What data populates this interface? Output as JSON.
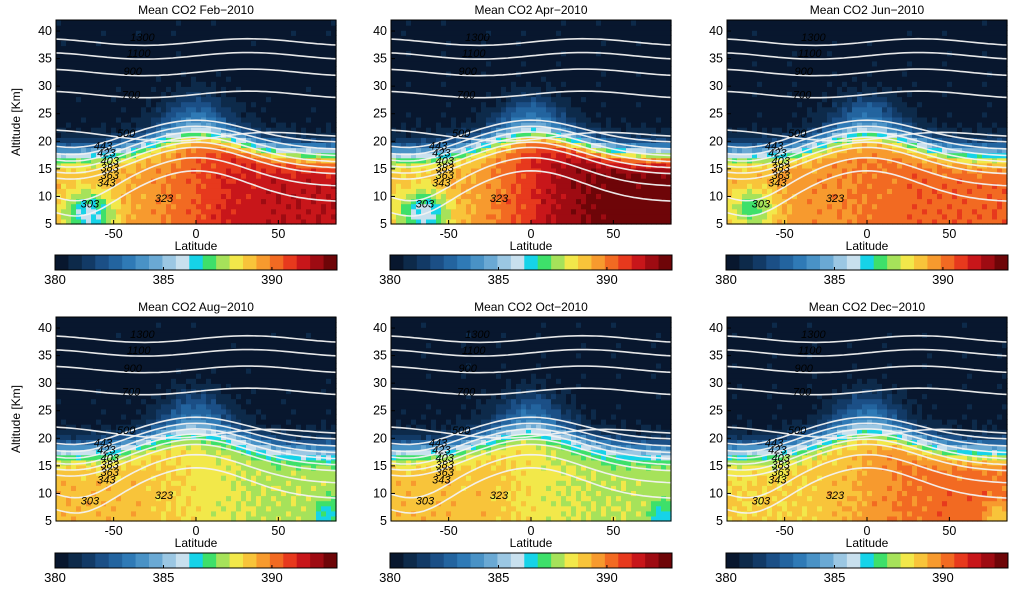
{
  "chart_data": [
    {
      "type": "heatmap",
      "title": "Mean CO2  Feb−2010",
      "xlabel": "Latitude",
      "ylabel": "Altitude [Km]",
      "xlim": [
        -85,
        85
      ],
      "ylim": [
        5,
        42
      ],
      "xticks": [
        "-50",
        "0",
        "50"
      ],
      "yticks": [
        "5",
        "10",
        "15",
        "20",
        "25",
        "30",
        "35",
        "40"
      ],
      "colorbar": {
        "range": [
          380,
          393
        ],
        "ticks": [
          "380",
          "385",
          "390"
        ]
      },
      "contour_labels": [
        "1300",
        "1100",
        "900",
        "700",
        "500",
        "443",
        "423",
        "403",
        "383",
        "363",
        "343",
        "323",
        "303"
      ],
      "core_value": 390.5
    },
    {
      "type": "heatmap",
      "title": "Mean CO2  Apr−2010",
      "xlabel": "Latitude",
      "ylabel": "",
      "xlim": [
        -85,
        85
      ],
      "ylim": [
        5,
        42
      ],
      "xticks": [
        "-50",
        "0",
        "50"
      ],
      "yticks": [
        "5",
        "10",
        "15",
        "20",
        "25",
        "30",
        "35",
        "40"
      ],
      "colorbar": {
        "range": [
          380,
          393
        ],
        "ticks": [
          "380",
          "385",
          "390"
        ]
      },
      "contour_labels": [
        "1300",
        "1100",
        "900",
        "700",
        "500",
        "443",
        "423",
        "403",
        "383",
        "363",
        "343",
        "323",
        "303"
      ],
      "core_value": 391.0
    },
    {
      "type": "heatmap",
      "title": "Mean CO2  Jun−2010",
      "xlabel": "Latitude",
      "ylabel": "",
      "xlim": [
        -85,
        85
      ],
      "ylim": [
        5,
        42
      ],
      "xticks": [
        "-50",
        "0",
        "50"
      ],
      "yticks": [
        "5",
        "10",
        "15",
        "20",
        "25",
        "30",
        "35",
        "40"
      ],
      "colorbar": {
        "range": [
          380,
          393
        ],
        "ticks": [
          "380",
          "385",
          "390"
        ]
      },
      "contour_labels": [
        "1300",
        "1100",
        "900",
        "700",
        "500",
        "443",
        "423",
        "403",
        "383",
        "363",
        "343",
        "323",
        "303"
      ],
      "core_value": 390.0
    },
    {
      "type": "heatmap",
      "title": "Mean CO2  Aug−2010",
      "xlabel": "Latitude",
      "ylabel": "Altitude [Km]",
      "xlim": [
        -85,
        85
      ],
      "ylim": [
        5,
        42
      ],
      "xticks": [
        "-50",
        "0",
        "50"
      ],
      "yticks": [
        "5",
        "10",
        "15",
        "20",
        "25",
        "30",
        "35",
        "40"
      ],
      "colorbar": {
        "range": [
          380,
          393
        ],
        "ticks": [
          "380",
          "385",
          "390"
        ]
      },
      "contour_labels": [
        "1300",
        "1100",
        "900",
        "700",
        "500",
        "443",
        "423",
        "403",
        "383",
        "363",
        "343",
        "323",
        "303"
      ],
      "core_value": 388.5
    },
    {
      "type": "heatmap",
      "title": "Mean CO2  Oct−2010",
      "xlabel": "Latitude",
      "ylabel": "",
      "xlim": [
        -85,
        85
      ],
      "ylim": [
        5,
        42
      ],
      "xticks": [
        "-50",
        "0",
        "50"
      ],
      "yticks": [
        "5",
        "10",
        "15",
        "20",
        "25",
        "30",
        "35",
        "40"
      ],
      "colorbar": {
        "range": [
          380,
          393
        ],
        "ticks": [
          "380",
          "385",
          "390"
        ]
      },
      "contour_labels": [
        "1300",
        "1100",
        "900",
        "700",
        "500",
        "443",
        "423",
        "403",
        "383",
        "363",
        "343",
        "323",
        "303"
      ],
      "core_value": 388.5
    },
    {
      "type": "heatmap",
      "title": "Mean CO2  Dec−2010",
      "xlabel": "Latitude",
      "ylabel": "",
      "xlim": [
        -85,
        85
      ],
      "ylim": [
        5,
        42
      ],
      "xticks": [
        "-50",
        "0",
        "50"
      ],
      "yticks": [
        "5",
        "10",
        "15",
        "20",
        "25",
        "30",
        "35",
        "40"
      ],
      "colorbar": {
        "range": [
          380,
          393
        ],
        "ticks": [
          "380",
          "385",
          "390"
        ]
      },
      "contour_labels": [
        "1300",
        "1100",
        "900",
        "700",
        "500",
        "443",
        "423",
        "403",
        "383",
        "363",
        "343",
        "323",
        "303"
      ],
      "core_value": 389.5
    }
  ],
  "colormap": [
    "#08172e",
    "#0d2a4a",
    "#123a66",
    "#1b4f86",
    "#23649f",
    "#2f7ab6",
    "#4992c6",
    "#6aa9d4",
    "#9bc7e3",
    "#c8e0ee",
    "#16d3e8",
    "#3ee06a",
    "#a6e25a",
    "#f2e84a",
    "#f8c43a",
    "#f79a2e",
    "#f26a22",
    "#e7391d",
    "#c8161a",
    "#9e0b12",
    "#6e0508"
  ]
}
